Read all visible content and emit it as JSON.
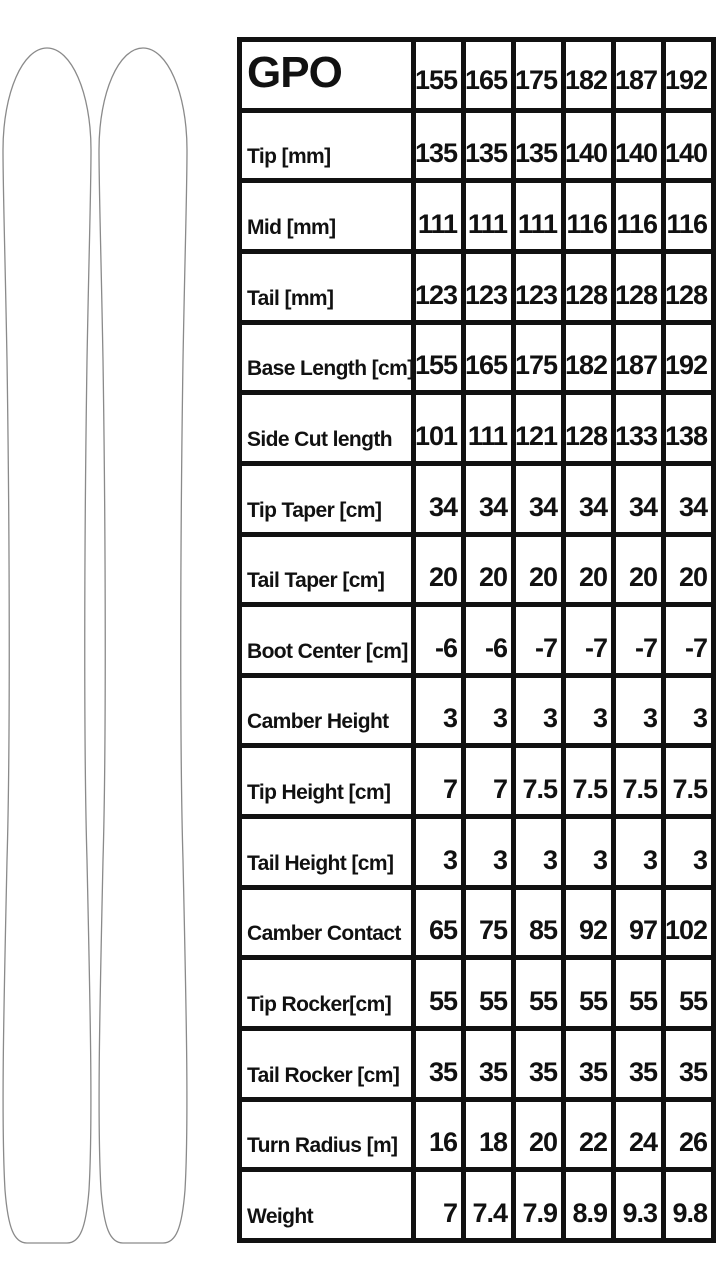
{
  "chart_data": {
    "type": "table",
    "title": "GPO",
    "column_headers": [
      "155",
      "165",
      "175",
      "182",
      "187",
      "192"
    ],
    "rows": [
      {
        "label": "Tip [mm]",
        "values": [
          "135",
          "135",
          "135",
          "140",
          "140",
          "140"
        ]
      },
      {
        "label": "Mid [mm]",
        "values": [
          "111",
          "111",
          "111",
          "116",
          "116",
          "116"
        ]
      },
      {
        "label": "Tail [mm]",
        "values": [
          "123",
          "123",
          "123",
          "128",
          "128",
          "128"
        ]
      },
      {
        "label": "Base Length [cm]",
        "values": [
          "155",
          "165",
          "175",
          "182",
          "187",
          "192"
        ]
      },
      {
        "label": "Side Cut length",
        "values": [
          "101",
          "111",
          "121",
          "128",
          "133",
          "138"
        ]
      },
      {
        "label": "Tip Taper [cm]",
        "values": [
          "34",
          "34",
          "34",
          "34",
          "34",
          "34"
        ]
      },
      {
        "label": "Tail Taper [cm]",
        "values": [
          "20",
          "20",
          "20",
          "20",
          "20",
          "20"
        ]
      },
      {
        "label": "Boot Center [cm]",
        "values": [
          "-6",
          "-6",
          "-7",
          "-7",
          "-7",
          "-7"
        ]
      },
      {
        "label": "Camber Height",
        "values": [
          "3",
          "3",
          "3",
          "3",
          "3",
          "3"
        ]
      },
      {
        "label": "Tip Height [cm]",
        "values": [
          "7",
          "7",
          "7.5",
          "7.5",
          "7.5",
          "7.5"
        ]
      },
      {
        "label": "Tail Height [cm]",
        "values": [
          "3",
          "3",
          "3",
          "3",
          "3",
          "3"
        ]
      },
      {
        "label": "Camber Contact",
        "values": [
          "65",
          "75",
          "85",
          "92",
          "97",
          "102"
        ]
      },
      {
        "label": "Tip Rocker[cm]",
        "values": [
          "55",
          "55",
          "55",
          "55",
          "55",
          "55"
        ]
      },
      {
        "label": "Tail Rocker [cm]",
        "values": [
          "35",
          "35",
          "35",
          "35",
          "35",
          "35"
        ]
      },
      {
        "label": "Turn Radius [m]",
        "values": [
          "16",
          "18",
          "20",
          "22",
          "24",
          "26"
        ]
      },
      {
        "label": "Weight",
        "values": [
          "7",
          "7.4",
          "7.9",
          "8.9",
          "9.3",
          "9.8"
        ]
      }
    ],
    "layout": {
      "grid": "on",
      "border_color": "#111111",
      "background_color": "#ffffff",
      "text_color": "#111111",
      "ski_outline_color": "#8a8a8a"
    }
  }
}
